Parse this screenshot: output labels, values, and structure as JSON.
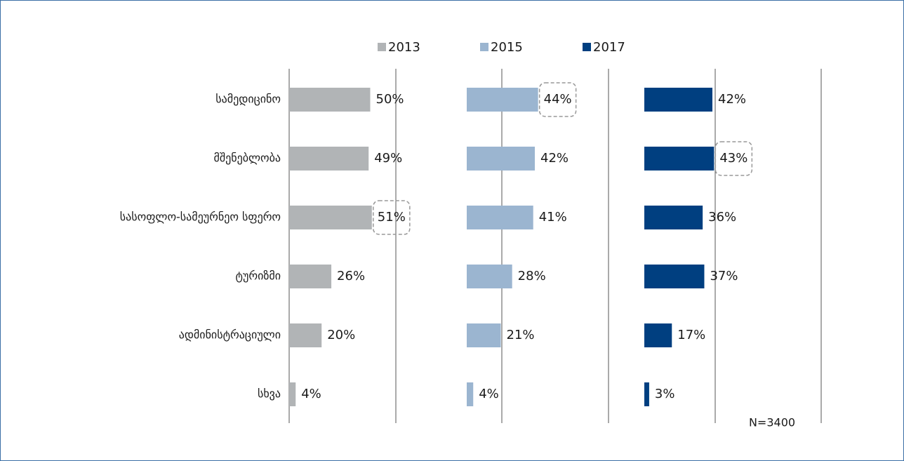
{
  "chart_data": {
    "type": "bar",
    "orientation": "horizontal",
    "layout": "panels",
    "categories": [
      "სამედიცინო",
      "მშენებლობა",
      "სასოფლო-სამეურნეო სფერო",
      "ტურიზმი",
      "ადმინისტრაციული",
      "სხვა"
    ],
    "xlim": [
      0,
      100
    ],
    "series": [
      {
        "name": "2013",
        "color": "#b1b4b6",
        "values": [
          50,
          49,
          51,
          26,
          20,
          4
        ],
        "value_labels": [
          "50%",
          "49%",
          "51%",
          "26%",
          "20%",
          "4%"
        ],
        "highlight": 2
      },
      {
        "name": "2015",
        "color": "#9bb5d0",
        "values": [
          44,
          42,
          41,
          28,
          21,
          4
        ],
        "value_labels": [
          "44%",
          "42%",
          "41%",
          "28%",
          "21%",
          "4%"
        ],
        "highlight": 0
      },
      {
        "name": "2017",
        "color": "#003f80",
        "values": [
          42,
          43,
          36,
          37,
          17,
          3
        ],
        "value_labels": [
          "42%",
          "43%",
          "36%",
          "37%",
          "17%",
          "3%"
        ],
        "highlight": 1
      }
    ],
    "legend": "top",
    "annotations": [
      "N=3400"
    ]
  }
}
